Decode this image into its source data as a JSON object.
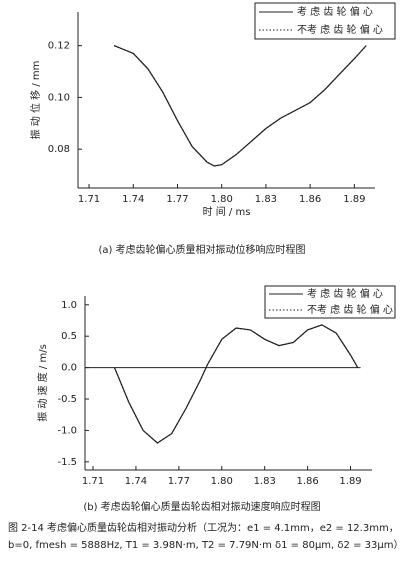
{
  "chart_data": [
    {
      "type": "line",
      "caption": "(a)  考虑齿轮偏心质量相对振动位移响应时程图",
      "x_label": "时 间  / ms",
      "y_label": "振 动 位 移  / mm",
      "xlim": [
        1.7025,
        1.904
      ],
      "ylim": [
        0.065,
        0.133
      ],
      "xticks": [
        1.71,
        1.74,
        1.77,
        {
          "value": 1.8,
          "label": "1.80"
        },
        1.83,
        1.86,
        1.89
      ],
      "yticks": [
        {
          "value": 0.08,
          "label": "0.08"
        },
        {
          "value": 0.1,
          "label": "0.10"
        },
        {
          "value": 0.12,
          "label": "0.12"
        }
      ],
      "x": [
        1.727,
        1.74,
        1.75,
        1.76,
        1.77,
        1.78,
        1.79,
        1.795,
        1.8,
        1.81,
        1.82,
        1.83,
        1.84,
        1.85,
        1.86,
        1.87,
        1.88,
        1.89,
        1.898
      ],
      "series": [
        {
          "name": "考 虑 齿 轮 偏 心",
          "color": "#222",
          "line_style": "solid",
          "values": [
            0.12,
            0.117,
            0.111,
            0.102,
            0.091,
            0.081,
            0.075,
            0.0735,
            0.074,
            0.078,
            0.083,
            0.088,
            0.092,
            0.095,
            0.098,
            0.103,
            0.109,
            0.115,
            0.12
          ]
        },
        {
          "name": "不考 虑 齿 轮 偏 心",
          "color": "#222",
          "line_style": "dotted",
          "values": [
            0.12,
            0.117,
            0.111,
            0.102,
            0.091,
            0.081,
            0.075,
            0.0735,
            0.074,
            0.078,
            0.083,
            0.088,
            0.092,
            0.095,
            0.098,
            0.103,
            0.109,
            0.115,
            0.12
          ]
        }
      ]
    },
    {
      "type": "line",
      "caption": "(b)  考虑齿轮偏心质量齿轮齿相对振动速度响应时程图",
      "y_label": "振 动 速 度  / m/s",
      "xlim": [
        1.7044,
        1.905
      ],
      "ylim": [
        -1.63,
        1.14
      ],
      "xticks": [
        1.71,
        1.74,
        1.77,
        {
          "value": 1.8,
          "label": "1.80"
        },
        1.83,
        1.86,
        1.89
      ],
      "yticks": [
        {
          "value": -1.5,
          "label": "-1.5"
        },
        {
          "value": -1,
          "label": "-1.0"
        },
        -0.5,
        {
          "value": 0,
          "label": "0.0"
        },
        0.5,
        {
          "value": 1,
          "label": "1.0"
        }
      ],
      "x": [
        1.725,
        1.735,
        1.745,
        1.755,
        1.765,
        1.775,
        1.785,
        1.79,
        1.8,
        1.81,
        1.82,
        1.83,
        1.84,
        1.85,
        1.86,
        1.87,
        1.88,
        1.89,
        1.895
      ],
      "series": [
        {
          "name": "考 虑 齿 轮 偏 心",
          "color": "#222",
          "line_style": "solid",
          "values": [
            0,
            -0.55,
            -1.0,
            -1.2,
            -1.05,
            -0.65,
            -0.2,
            0.05,
            0.45,
            0.63,
            0.6,
            0.45,
            0.35,
            0.4,
            0.6,
            0.68,
            0.55,
            0.2,
            0
          ]
        },
        {
          "name": "不考 虑 齿 轮 偏 心",
          "color": "#222",
          "line_style": "dotted",
          "values": [
            0,
            -0.55,
            -1.0,
            -1.2,
            -1.05,
            -0.65,
            -0.2,
            0.05,
            0.45,
            0.63,
            0.6,
            0.45,
            0.35,
            0.4,
            0.6,
            0.68,
            0.55,
            0.2,
            0
          ]
        }
      ]
    }
  ],
  "figure_caption": [
    "图 2-14  考虑偏心质量齿轮齿相对振动分析（工况为：e1 = 4.1mm，e2 = 12.3mm，",
    "b=0, fmesh = 5888Hz, T1 = 3.98N·m, T2 = 7.79N·m δ1 = 80μm, δ2 = 33μm）"
  ]
}
